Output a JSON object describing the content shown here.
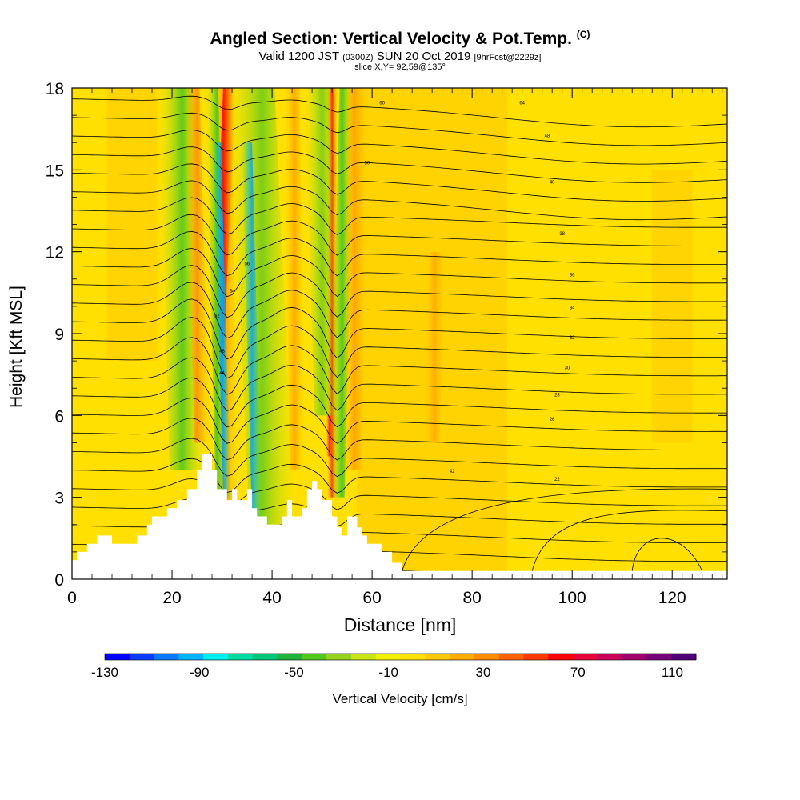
{
  "chart_data": {
    "type": "heatmap",
    "title": "Angled Section: Vertical Velocity & Pot.Temp.",
    "title_mark": "(C)",
    "subtitle_prefix": "Valid 1200 JST",
    "subtitle_utc": "(0300Z)",
    "subtitle_date": "SUN 20 Oct 2019",
    "subtitle_fcst": "[9hrFcst@2229z]",
    "slice": "slice X,Y= 92,59@135°",
    "xlabel": "Distance [nm]",
    "ylabel": "Height [Kft MSL]",
    "xlim": [
      0,
      131
    ],
    "ylim": [
      0,
      18
    ],
    "x_ticks": [
      "0",
      "20",
      "40",
      "60",
      "80",
      "100",
      "120"
    ],
    "x_tick_values": [
      0,
      20,
      40,
      60,
      80,
      100,
      120
    ],
    "y_ticks": [
      "0",
      "3",
      "6",
      "9",
      "12",
      "15",
      "18"
    ],
    "y_tick_values": [
      0,
      3,
      6,
      9,
      12,
      15,
      18
    ],
    "colorbar": {
      "label": "Vertical Velocity [cm/s]",
      "range": [
        -130,
        120
      ],
      "tick_labels": [
        "-130",
        "-90",
        "-50",
        "-10",
        "30",
        "70",
        "110"
      ],
      "tick_values": [
        -130,
        -90,
        -50,
        -10,
        30,
        70,
        110
      ],
      "colors": [
        "#0000ff",
        "#0a3cff",
        "#0a78ff",
        "#00b4ff",
        "#00f0f0",
        "#00dca0",
        "#00c878",
        "#1eb43c",
        "#50c81e",
        "#96d21e",
        "#c8e614",
        "#f0f000",
        "#ffe100",
        "#ffc800",
        "#ffaa00",
        "#ff8c00",
        "#ff6400",
        "#ff3c00",
        "#ff0000",
        "#e6003c",
        "#c8005a",
        "#a0006e",
        "#780078",
        "#500078"
      ]
    },
    "terrain_kft": [
      [
        0,
        0.7
      ],
      [
        1,
        0.7
      ],
      [
        1,
        1
      ],
      [
        3,
        1
      ],
      [
        3,
        1.3
      ],
      [
        5,
        1.3
      ],
      [
        5,
        1.6
      ],
      [
        8,
        1.6
      ],
      [
        8,
        1.3
      ],
      [
        10,
        1.3
      ],
      [
        10,
        1.3
      ],
      [
        13,
        1.3
      ],
      [
        13,
        1.6
      ],
      [
        15,
        1.6
      ],
      [
        15,
        2
      ],
      [
        16,
        2
      ],
      [
        16,
        2.3
      ],
      [
        19,
        2.3
      ],
      [
        19,
        2.6
      ],
      [
        21,
        2.6
      ],
      [
        21,
        2.9
      ],
      [
        23,
        2.9
      ],
      [
        23,
        3.3
      ],
      [
        25,
        3.3
      ],
      [
        25,
        4
      ],
      [
        26,
        4
      ],
      [
        26,
        4.6
      ],
      [
        28,
        4.6
      ],
      [
        28,
        4
      ],
      [
        29,
        4
      ],
      [
        29,
        3.3
      ],
      [
        31,
        3.3
      ],
      [
        31,
        2.9
      ],
      [
        32,
        2.9
      ],
      [
        32,
        3.3
      ],
      [
        33,
        3.3
      ],
      [
        33,
        2.9
      ],
      [
        35,
        2.9
      ],
      [
        35,
        3.3
      ],
      [
        36,
        3.3
      ],
      [
        36,
        2.6
      ],
      [
        37,
        2.6
      ],
      [
        37,
        2.3
      ],
      [
        39,
        2.3
      ],
      [
        39,
        2
      ],
      [
        42,
        2
      ],
      [
        42,
        2.3
      ],
      [
        43,
        2.3
      ],
      [
        43,
        2.9
      ],
      [
        44,
        2.9
      ],
      [
        44,
        2.3
      ],
      [
        46,
        2.3
      ],
      [
        46,
        2.6
      ],
      [
        47,
        2.6
      ],
      [
        47,
        3.3
      ],
      [
        48,
        3.3
      ],
      [
        48,
        3.6
      ],
      [
        49,
        3.6
      ],
      [
        49,
        3.3
      ],
      [
        50,
        3.3
      ],
      [
        50,
        2.9
      ],
      [
        52,
        2.9
      ],
      [
        52,
        2.3
      ],
      [
        53,
        2.3
      ],
      [
        53,
        1.9
      ],
      [
        54,
        1.9
      ],
      [
        54,
        1.6
      ],
      [
        55,
        1.6
      ],
      [
        55,
        2.3
      ],
      [
        57,
        2.3
      ],
      [
        57,
        1.9
      ],
      [
        58,
        1.9
      ],
      [
        58,
        1.6
      ],
      [
        59,
        1.6
      ],
      [
        59,
        1.3
      ],
      [
        62,
        1.3
      ],
      [
        62,
        1
      ],
      [
        64,
        1
      ],
      [
        64,
        0.6
      ],
      [
        66,
        0.6
      ],
      [
        66,
        0.3
      ],
      [
        131,
        0.3
      ]
    ],
    "isentrope_labels": [
      "64",
      "48",
      "40",
      "38",
      "36",
      "34",
      "32",
      "30",
      "28",
      "26",
      "22",
      "60",
      "50",
      "56",
      "54",
      "52",
      "46",
      "44",
      "42"
    ]
  }
}
